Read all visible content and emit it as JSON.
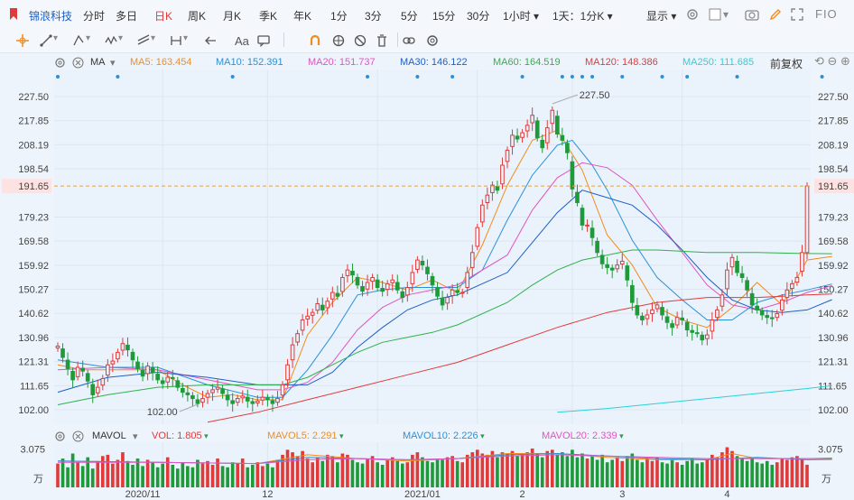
{
  "header": {
    "stock_name": "锦浪科技",
    "periods": [
      {
        "label": "分时"
      },
      {
        "label": "多日"
      },
      {
        "label": "日K",
        "active": true
      },
      {
        "label": "周K"
      },
      {
        "label": "月K"
      },
      {
        "label": "季K"
      },
      {
        "label": "年K"
      },
      {
        "label": "1分"
      },
      {
        "label": "3分"
      },
      {
        "label": "5分"
      },
      {
        "label": "15分"
      },
      {
        "label": "30分"
      },
      {
        "label": "1小时"
      },
      {
        "label": "1天：1分K"
      }
    ],
    "display_label": "显示",
    "f10_label": "FIO",
    "accent_color": "#e03b3b"
  },
  "toolbar": {
    "tools": [
      "crosshair-icon",
      "line-icon",
      "ray-icon",
      "wave-icon",
      "channel-icon",
      "range-icon",
      "arrow-icon",
      "text-icon",
      "comment-icon",
      "magnet-icon",
      "lock-icon",
      "hide-icon",
      "trash-icon",
      "link-icon",
      "settings-icon"
    ],
    "text_tool_label": "Aa"
  },
  "ma_legend": {
    "indicator": "MA",
    "items": [
      {
        "label": "MA5: 163.454",
        "color": "#f28c1c"
      },
      {
        "label": "MA10: 152.391",
        "color": "#2a90d8"
      },
      {
        "label": "MA20: 151.737",
        "color": "#e055c0"
      },
      {
        "label": "MA30: 146.122",
        "color": "#1d5fc4"
      },
      {
        "label": "MA60: 164.519",
        "color": "#2fb24a"
      },
      {
        "label": "MA120: 148.386",
        "color": "#e03b3b"
      },
      {
        "label": "MA250: 111.685",
        "color": "#28d3d8"
      }
    ],
    "adjust_label": "前复权"
  },
  "vol_legend": {
    "indicator": "MAVOL",
    "items": [
      {
        "label": "VOL: 1.805",
        "color": "#e03b3b"
      },
      {
        "label": "MAVOL5: 2.291",
        "color": "#f28c1c"
      },
      {
        "label": "MAVOL10: 2.226",
        "color": "#2a90d8"
      },
      {
        "label": "MAVOL20: 2.339",
        "color": "#e055c0"
      }
    ]
  },
  "chart_data": {
    "type": "candlestick",
    "price_axis": {
      "ticks": [
        "227.50",
        "217.85",
        "208.19",
        "198.54",
        "191.65",
        "179.23",
        "169.58",
        "159.92",
        "150.27",
        "140.62",
        "130.96",
        "121.31",
        "111.65",
        "102.00"
      ],
      "range": [
        102.0,
        227.5
      ]
    },
    "current_price": "191.65",
    "high_label": "227.50",
    "low_label": "102.00",
    "x_labels": [
      "2020/11",
      "12",
      "2021/01",
      "2",
      "3",
      "4"
    ],
    "volume_axis": {
      "tick": "3.075",
      "unit": "万"
    },
    "closes": [
      127.5,
      123.0,
      118.5,
      114.0,
      119.0,
      117.5,
      113.5,
      108.0,
      111.0,
      114.5,
      120.0,
      121.5,
      125.0,
      128.5,
      126.0,
      122.0,
      118.5,
      115.5,
      119.5,
      117.0,
      114.0,
      112.5,
      115.0,
      114.5,
      111.0,
      109.0,
      108.0,
      106.5,
      104.5,
      106.5,
      108.5,
      110.0,
      111.0,
      108.5,
      106.0,
      104.5,
      106.5,
      107.5,
      105.5,
      104.5,
      105.5,
      107.0,
      106.0,
      104.5,
      106.5,
      112.0,
      120.0,
      128.0,
      132.5,
      138.0,
      139.5,
      141.0,
      144.5,
      142.0,
      145.5,
      149.0,
      147.5,
      155.0,
      158.0,
      156.0,
      152.0,
      149.5,
      153.0,
      155.0,
      151.0,
      149.5,
      152.5,
      154.0,
      150.0,
      147.0,
      151.0,
      157.0,
      162.0,
      160.0,
      156.5,
      152.0,
      147.5,
      144.0,
      147.0,
      150.0,
      149.0,
      149.0,
      157.0,
      165.0,
      175.0,
      184.0,
      188.0,
      192.0,
      190.0,
      200.0,
      206.0,
      212.0,
      210.5,
      213.0,
      216.0,
      220.0,
      211.0,
      207.0,
      215.0,
      222.0,
      212.5,
      210.0,
      205.0,
      190.5,
      185.0,
      176.0,
      176.0,
      171.0,
      165.0,
      160.5,
      159.0,
      158.0,
      160.0,
      161.5,
      154.0,
      145.0,
      140.0,
      138.0,
      140.0,
      142.0,
      144.0,
      140.0,
      137.0,
      135.0,
      139.0,
      138.0,
      134.0,
      133.0,
      132.5,
      130.0,
      132.0,
      138.0,
      142.0,
      148.0,
      158.0,
      163.0,
      157.0,
      155.0,
      150.0,
      144.0,
      142.0,
      140.0,
      139.0,
      138.5,
      140.5,
      146.0,
      150.0,
      152.5,
      155.0,
      165.0,
      191.65
    ],
    "ma_lines": {
      "MA5": [
        [
          0,
          120
        ],
        [
          5,
          118
        ],
        [
          10,
          118
        ],
        [
          15,
          118
        ],
        [
          20,
          118
        ],
        [
          25,
          112
        ],
        [
          30,
          107
        ],
        [
          35,
          108
        ],
        [
          40,
          106
        ],
        [
          45,
          106
        ],
        [
          50,
          132
        ],
        [
          55,
          145
        ],
        [
          60,
          155
        ],
        [
          65,
          153
        ],
        [
          70,
          150
        ],
        [
          75,
          154
        ],
        [
          80,
          149
        ],
        [
          85,
          168
        ],
        [
          90,
          192
        ],
        [
          95,
          210
        ],
        [
          100,
          214
        ],
        [
          105,
          198
        ],
        [
          110,
          172
        ],
        [
          115,
          160
        ],
        [
          120,
          143
        ],
        [
          125,
          138
        ],
        [
          130,
          135
        ],
        [
          135,
          143
        ],
        [
          140,
          153
        ],
        [
          145,
          144
        ],
        [
          150,
          162
        ],
        [
          155,
          163.45
        ]
      ],
      "MA10": [
        [
          0,
          122
        ],
        [
          10,
          119
        ],
        [
          20,
          119
        ],
        [
          30,
          112
        ],
        [
          40,
          107
        ],
        [
          45,
          107
        ],
        [
          50,
          118
        ],
        [
          55,
          132
        ],
        [
          60,
          148
        ],
        [
          65,
          150
        ],
        [
          70,
          151
        ],
        [
          80,
          151
        ],
        [
          85,
          158
        ],
        [
          90,
          178
        ],
        [
          95,
          196
        ],
        [
          100,
          208
        ],
        [
          103,
          210
        ],
        [
          107,
          200
        ],
        [
          110,
          190
        ],
        [
          115,
          170
        ],
        [
          120,
          155
        ],
        [
          125,
          146
        ],
        [
          130,
          138
        ],
        [
          135,
          138
        ],
        [
          140,
          145
        ],
        [
          145,
          148
        ],
        [
          150,
          150
        ],
        [
          155,
          152.39
        ]
      ],
      "MA20": [
        [
          0,
          118
        ],
        [
          10,
          119
        ],
        [
          20,
          118
        ],
        [
          30,
          114
        ],
        [
          40,
          110
        ],
        [
          45,
          110
        ],
        [
          50,
          113
        ],
        [
          55,
          121
        ],
        [
          60,
          134
        ],
        [
          65,
          143
        ],
        [
          70,
          148
        ],
        [
          75,
          150
        ],
        [
          80,
          152
        ],
        [
          90,
          164
        ],
        [
          95,
          182
        ],
        [
          100,
          195
        ],
        [
          105,
          201
        ],
        [
          110,
          199
        ],
        [
          115,
          192
        ],
        [
          120,
          178
        ],
        [
          125,
          165
        ],
        [
          130,
          152
        ],
        [
          135,
          144
        ],
        [
          140,
          142
        ],
        [
          145,
          145
        ],
        [
          150,
          149
        ],
        [
          155,
          151.74
        ]
      ],
      "MA30": [
        [
          0,
          109
        ],
        [
          10,
          115
        ],
        [
          20,
          117
        ],
        [
          30,
          115
        ],
        [
          40,
          112
        ],
        [
          45,
          112
        ],
        [
          50,
          112
        ],
        [
          55,
          117
        ],
        [
          60,
          127
        ],
        [
          65,
          135
        ],
        [
          70,
          142
        ],
        [
          75,
          146
        ],
        [
          80,
          148
        ],
        [
          90,
          157
        ],
        [
          95,
          169
        ],
        [
          100,
          181
        ],
        [
          105,
          190
        ],
        [
          110,
          187
        ],
        [
          115,
          184
        ],
        [
          120,
          176
        ],
        [
          125,
          166
        ],
        [
          130,
          155
        ],
        [
          135,
          146
        ],
        [
          140,
          142
        ],
        [
          145,
          141
        ],
        [
          150,
          142
        ],
        [
          155,
          146.12
        ]
      ],
      "MA60": [
        [
          0,
          104
        ],
        [
          10,
          108
        ],
        [
          20,
          111
        ],
        [
          30,
          112
        ],
        [
          40,
          112
        ],
        [
          45,
          112
        ],
        [
          50,
          115
        ],
        [
          55,
          120
        ],
        [
          60,
          125
        ],
        [
          65,
          129
        ],
        [
          70,
          131
        ],
        [
          75,
          133
        ],
        [
          80,
          136
        ],
        [
          90,
          145
        ],
        [
          95,
          152
        ],
        [
          100,
          158
        ],
        [
          105,
          162
        ],
        [
          110,
          164
        ],
        [
          115,
          166
        ],
        [
          120,
          166
        ],
        [
          125,
          165.5
        ],
        [
          130,
          165
        ],
        [
          135,
          165
        ],
        [
          140,
          165
        ],
        [
          145,
          164.8
        ],
        [
          150,
          164.6
        ],
        [
          155,
          164.52
        ]
      ],
      "MA120": [
        [
          30,
          97
        ],
        [
          40,
          101
        ],
        [
          50,
          106
        ],
        [
          60,
          111
        ],
        [
          70,
          116
        ],
        [
          80,
          121
        ],
        [
          90,
          128
        ],
        [
          100,
          135
        ],
        [
          110,
          141
        ],
        [
          120,
          145
        ],
        [
          130,
          147
        ],
        [
          140,
          147
        ],
        [
          145,
          147.5
        ],
        [
          150,
          148
        ],
        [
          155,
          148.39
        ]
      ],
      "MA250": [
        [
          100,
          101
        ],
        [
          110,
          102.5
        ],
        [
          120,
          104.5
        ],
        [
          130,
          106.5
        ],
        [
          140,
          108.5
        ],
        [
          150,
          110.5
        ],
        [
          155,
          111.69
        ]
      ]
    },
    "volumes": [
      1.9,
      2.3,
      1.6,
      2.7,
      2.0,
      1.7,
      2.4,
      1.5,
      2.1,
      2.5,
      2.6,
      1.9,
      2.2,
      2.8,
      2.1,
      1.8,
      2.3,
      1.7,
      2.2,
      2.0,
      1.6,
      1.9,
      2.4,
      1.8,
      1.5,
      2.0,
      1.7,
      1.6,
      2.2,
      1.9,
      2.1,
      1.8,
      2.3,
      1.7,
      1.6,
      2.0,
      1.9,
      2.3,
      1.6,
      1.8,
      2.0,
      1.7,
      1.9,
      1.6,
      2.2,
      2.6,
      3.0,
      2.8,
      2.5,
      2.9,
      2.3,
      2.0,
      2.4,
      2.1,
      2.6,
      2.5,
      2.0,
      2.7,
      2.6,
      2.2,
      2.0,
      1.9,
      2.3,
      2.5,
      2.0,
      1.8,
      2.2,
      2.4,
      2.1,
      1.9,
      2.0,
      2.6,
      2.8,
      2.4,
      2.1,
      2.0,
      2.3,
      2.2,
      2.4,
      2.5,
      2.1,
      2.0,
      2.6,
      2.8,
      3.0,
      2.7,
      2.6,
      2.9,
      2.4,
      2.8,
      2.7,
      2.9,
      2.5,
      2.6,
      2.8,
      3.1,
      2.7,
      2.4,
      2.9,
      3.0,
      2.6,
      2.8,
      2.5,
      3.0,
      2.4,
      2.7,
      2.3,
      2.5,
      2.2,
      2.6,
      2.0,
      2.2,
      2.4,
      2.1,
      2.5,
      2.7,
      2.2,
      2.0,
      2.3,
      2.1,
      2.4,
      2.0,
      1.9,
      2.2,
      2.0,
      1.8,
      2.1,
      2.3,
      1.9,
      2.0,
      2.2,
      2.6,
      2.4,
      2.8,
      3.2,
      2.9,
      2.5,
      2.3,
      2.1,
      2.4,
      2.0,
      1.9,
      2.1,
      1.8,
      2.0,
      2.3,
      2.2,
      2.4,
      2.5,
      2.2,
      1.805
    ],
    "volume_ma": {
      "MAVOL5": [
        [
          0,
          2.1
        ],
        [
          20,
          2.0
        ],
        [
          40,
          1.9
        ],
        [
          50,
          2.6
        ],
        [
          60,
          2.3
        ],
        [
          70,
          2.1
        ],
        [
          80,
          2.3
        ],
        [
          90,
          2.7
        ],
        [
          100,
          2.7
        ],
        [
          110,
          2.4
        ],
        [
          120,
          2.2
        ],
        [
          130,
          2.2
        ],
        [
          135,
          2.7
        ],
        [
          140,
          2.3
        ],
        [
          150,
          2.3
        ],
        [
          155,
          2.29
        ]
      ],
      "MAVOL10": [
        [
          0,
          2.1
        ],
        [
          20,
          2.0
        ],
        [
          40,
          1.9
        ],
        [
          50,
          2.4
        ],
        [
          60,
          2.3
        ],
        [
          70,
          2.2
        ],
        [
          80,
          2.3
        ],
        [
          90,
          2.6
        ],
        [
          100,
          2.7
        ],
        [
          110,
          2.5
        ],
        [
          120,
          2.3
        ],
        [
          130,
          2.2
        ],
        [
          140,
          2.4
        ],
        [
          150,
          2.2
        ],
        [
          155,
          2.23
        ]
      ],
      "MAVOL20": [
        [
          0,
          2.0
        ],
        [
          20,
          2.0
        ],
        [
          40,
          1.9
        ],
        [
          50,
          2.2
        ],
        [
          60,
          2.3
        ],
        [
          70,
          2.2
        ],
        [
          80,
          2.3
        ],
        [
          90,
          2.5
        ],
        [
          100,
          2.6
        ],
        [
          110,
          2.5
        ],
        [
          120,
          2.4
        ],
        [
          130,
          2.3
        ],
        [
          140,
          2.3
        ],
        [
          150,
          2.3
        ],
        [
          155,
          2.34
        ]
      ]
    },
    "colors": {
      "up": "#e03b3b",
      "down": "#1f9a3a",
      "grid": "#dde6f0"
    }
  }
}
